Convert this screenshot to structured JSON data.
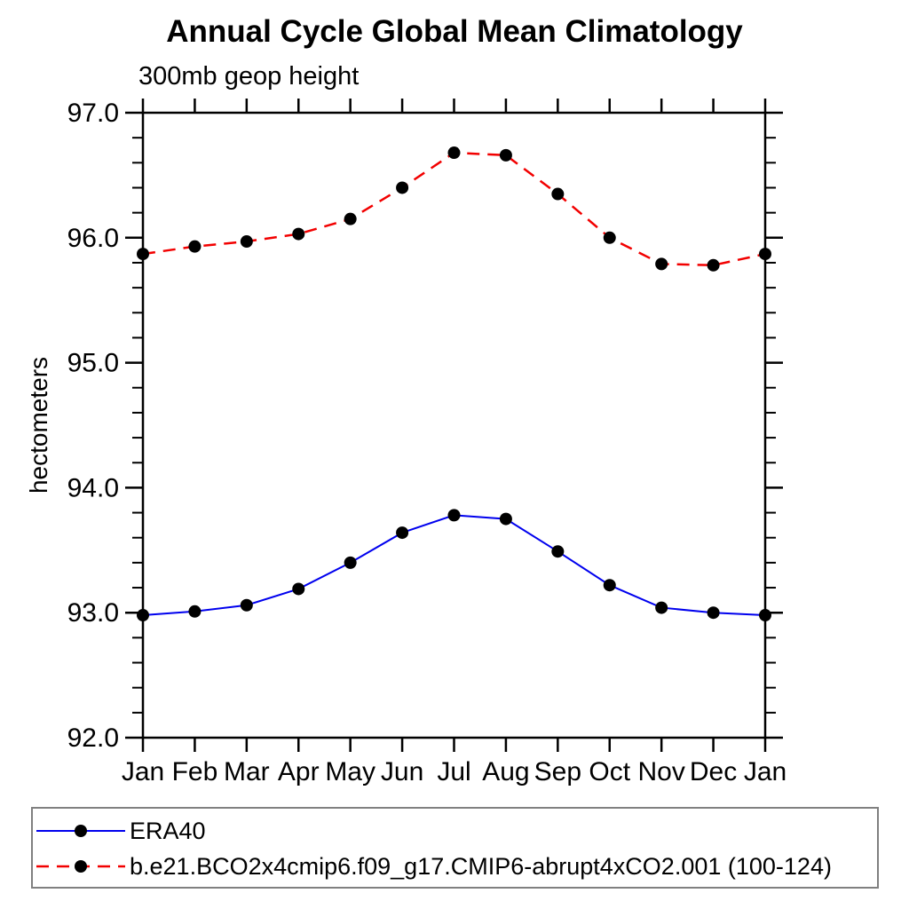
{
  "header": {
    "title": "Annual Cycle Global Mean Climatology",
    "subtitle": "300mb geop height"
  },
  "chart_data": {
    "type": "line",
    "title": "Annual Cycle Global Mean Climatology",
    "subtitle": "300mb geop height",
    "ylabel": "hectometers",
    "xlabel": "",
    "x_categories": [
      "Jan",
      "Feb",
      "Mar",
      "Apr",
      "May",
      "Jun",
      "Jul",
      "Aug",
      "Sep",
      "Oct",
      "Nov",
      "Dec",
      "Jan"
    ],
    "ylim": [
      92.0,
      97.0
    ],
    "yticks": [
      92.0,
      93.0,
      94.0,
      95.0,
      96.0,
      97.0
    ],
    "ytick_labels": [
      "92.0",
      "93.0",
      "94.0",
      "95.0",
      "96.0",
      "97.0"
    ],
    "y_minor_step": 0.2,
    "grid": false,
    "legend_position": "bottom-box",
    "series": [
      {
        "name": "ERA40",
        "color": "#0000ee",
        "line_style": "solid",
        "marker": "filled-circle",
        "marker_color": "#000000",
        "values": [
          92.98,
          93.01,
          93.06,
          93.19,
          93.4,
          93.64,
          93.78,
          93.75,
          93.49,
          93.22,
          93.04,
          93.0,
          92.98
        ]
      },
      {
        "name": "b.e21.BCO2x4cmip6.f09_g17.CMIP6-abrupt4xCO2.001 (100-124)",
        "color": "#f20000",
        "line_style": "dashed",
        "marker": "filled-circle",
        "marker_color": "#000000",
        "values": [
          95.87,
          95.93,
          95.97,
          96.03,
          96.15,
          96.4,
          96.68,
          96.66,
          96.35,
          96.0,
          95.79,
          95.78,
          95.87
        ]
      }
    ],
    "axis_color": "#000000"
  }
}
